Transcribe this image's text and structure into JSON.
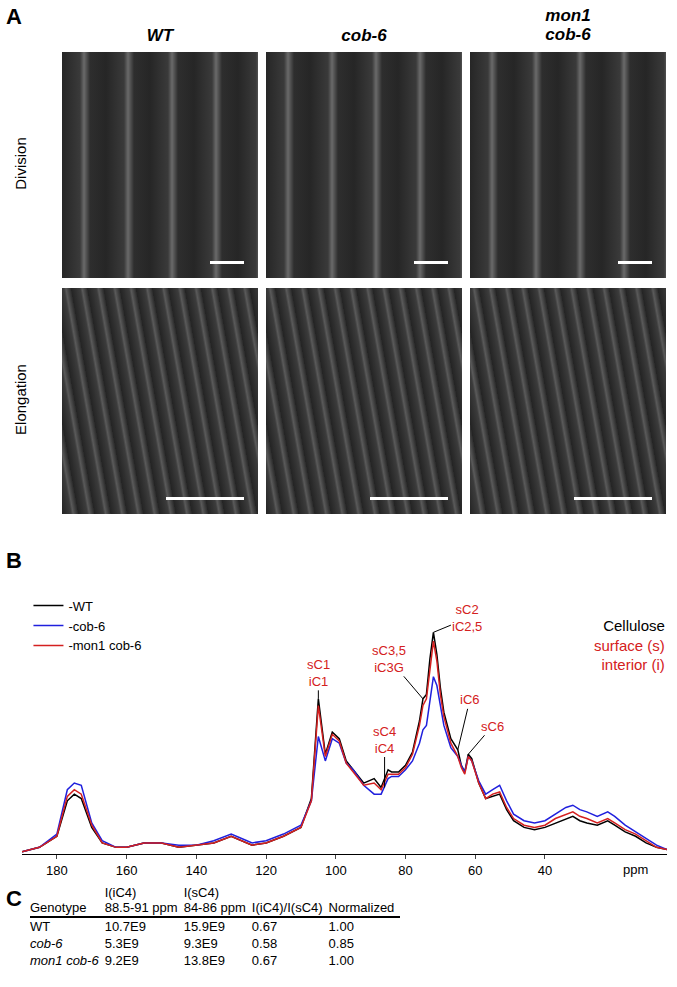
{
  "panel_a": {
    "panel_label": "A",
    "columns": [
      [
        "WT"
      ],
      [
        "cob-6"
      ],
      [
        "mon1",
        "cob-6"
      ]
    ],
    "rows": [
      "Division",
      "Elongation"
    ]
  },
  "chart_data": {
    "panel_label": "B",
    "type": "line",
    "x": [
      190,
      185,
      180,
      177,
      175,
      173,
      170,
      167,
      163,
      160,
      155,
      150,
      145,
      140,
      135,
      130,
      127,
      124,
      120,
      115,
      110,
      107,
      105,
      103,
      101,
      99,
      97,
      95,
      92,
      89,
      87,
      85,
      84,
      82,
      80,
      78,
      76,
      75,
      74,
      73,
      72,
      71,
      70,
      69,
      67,
      65,
      64,
      63,
      62,
      61,
      59,
      57,
      55,
      53,
      51,
      49,
      46,
      43,
      40,
      37,
      34,
      32,
      30,
      28,
      25,
      22,
      20,
      17,
      14,
      11,
      8,
      5
    ],
    "series": [
      {
        "name": "-WT",
        "color": "#000000",
        "values": [
          1,
          3,
          8,
          24,
          27,
          25,
          12,
          5,
          3,
          3,
          5,
          5,
          3,
          4,
          5,
          8,
          6,
          4,
          5,
          8,
          12,
          25,
          70,
          45,
          55,
          52,
          42,
          38,
          32,
          34,
          30,
          38,
          37,
          37,
          40,
          46,
          60,
          70,
          72,
          88,
          100,
          90,
          75,
          64,
          52,
          47,
          40,
          37,
          45,
          43,
          32,
          25,
          26,
          27,
          20,
          15,
          12,
          11,
          12,
          14,
          16,
          17,
          15,
          14,
          13,
          15,
          13,
          10,
          8,
          5,
          3,
          2
        ]
      },
      {
        "name": "-cob-6",
        "color": "#2020dd",
        "values": [
          1,
          3,
          9,
          29,
          32,
          31,
          14,
          6,
          3,
          3,
          5,
          5,
          4,
          4,
          6,
          9,
          7,
          5,
          6,
          9,
          13,
          24,
          53,
          42,
          52,
          50,
          41,
          38,
          31,
          27,
          27,
          34,
          35,
          35,
          38,
          42,
          50,
          56,
          58,
          68,
          80,
          76,
          66,
          58,
          48,
          44,
          40,
          37,
          44,
          42,
          33,
          27,
          29,
          31,
          24,
          18,
          15,
          14,
          15,
          18,
          21,
          22,
          20,
          19,
          17,
          19,
          17,
          13,
          10,
          7,
          4,
          2
        ]
      },
      {
        "name": "-mon1 cob-6",
        "color": "#d42020",
        "values": [
          1,
          3,
          8,
          26,
          29,
          27,
          13,
          5,
          3,
          3,
          5,
          5,
          3,
          4,
          5,
          8,
          6,
          4,
          5,
          8,
          12,
          24,
          67,
          44,
          54,
          51,
          41,
          37,
          31,
          32,
          29,
          36,
          36,
          36,
          39,
          45,
          58,
          67,
          70,
          84,
          96,
          87,
          72,
          62,
          50,
          44,
          39,
          36,
          44,
          42,
          32,
          25,
          27,
          28,
          21,
          16,
          13,
          12,
          13,
          16,
          18,
          19,
          17,
          16,
          14,
          16,
          14,
          11,
          9,
          6,
          3,
          2
        ]
      }
    ],
    "xlim": [
      190,
      5
    ],
    "xticks": [
      180,
      160,
      140,
      120,
      100,
      80,
      60,
      40
    ],
    "ylim": [
      0,
      120
    ],
    "xlabel": "ppm",
    "tick_labels": "x",
    "grid": false,
    "legend": "upper left",
    "annotations": [
      {
        "x": 105,
        "text": [
          "sC1",
          "iC1"
        ],
        "color": "#d42020"
      },
      {
        "x": 86,
        "text": [
          "sC4",
          "iC4"
        ],
        "color": "#d42020"
      },
      {
        "x": 75,
        "text": [
          "sC3,5",
          "iC3G"
        ],
        "color": "#d42020"
      },
      {
        "x": 72,
        "text": [
          "sC2",
          "iC2,5"
        ],
        "color": "#d42020"
      },
      {
        "x": 65,
        "text": [
          "iC6"
        ],
        "color": "#d42020"
      },
      {
        "x": 62,
        "text": [
          "sC6"
        ],
        "color": "#d42020"
      }
    ],
    "notes": [
      {
        "text": "Cellulose",
        "color": "#000000"
      },
      {
        "text": "surface (s)",
        "color": "#d42020"
      },
      {
        "text": "interior (i)",
        "color": "#d42020"
      }
    ]
  },
  "table": {
    "panel_label": "C",
    "header": [
      [
        "Genotype"
      ],
      [
        "I(iC4)",
        "88.5-91 ppm"
      ],
      [
        "I(sC4)",
        "84-86 ppm"
      ],
      [
        "I(iC4)/I(sC4)"
      ],
      [
        "Normalized"
      ]
    ],
    "rows": [
      [
        "WT",
        "10.7E9",
        "15.9E9",
        "0.67",
        "1.00"
      ],
      [
        "cob-6",
        "5.3E9",
        "9.3E9",
        "0.58",
        "0.85"
      ],
      [
        "mon1 cob-6",
        "9.2E9",
        "13.8E9",
        "0.67",
        "1.00"
      ]
    ]
  }
}
